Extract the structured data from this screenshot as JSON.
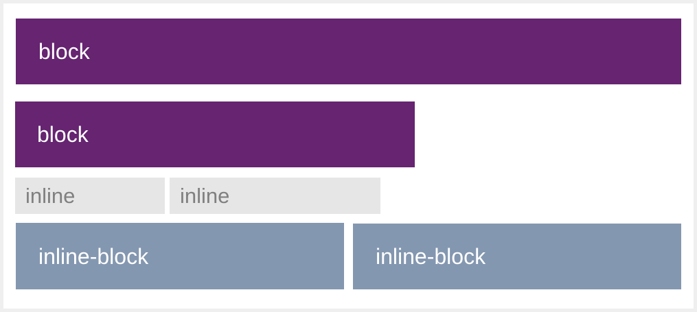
{
  "diagram": {
    "colors": {
      "block": "#662471",
      "inline": "#e6e6e6",
      "inline_text": "#808080",
      "inline_block": "#8497b0",
      "text_light": "#ffffff"
    },
    "block_boxes": [
      {
        "label": "block"
      },
      {
        "label": "block"
      }
    ],
    "inline_boxes": [
      {
        "label": "inline"
      },
      {
        "label": "inline"
      }
    ],
    "inline_block_boxes": [
      {
        "label": "inline-block"
      },
      {
        "label": "inline-block"
      }
    ]
  }
}
